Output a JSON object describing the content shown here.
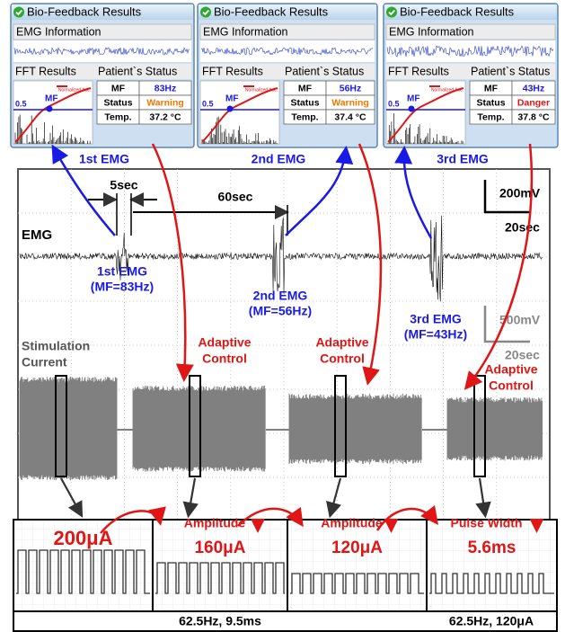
{
  "panels": [
    {
      "title": "Bio-Feedback Results",
      "emg_header": "EMG Information",
      "fft_header": "FFT Results",
      "status_header": "Patient`s Status",
      "fft_legend": "Normalized Acc.",
      "fft_level": "0.5",
      "fft_marker": "MF",
      "rows": [
        [
          "MF",
          "83Hz"
        ],
        [
          "Status",
          "Warning"
        ],
        [
          "Temp.",
          "37.2 °C"
        ]
      ],
      "caption": "1st EMG"
    },
    {
      "title": "Bio-Feedback Results",
      "emg_header": "EMG Information",
      "fft_header": "FFT Results",
      "status_header": "Patient`s Status",
      "fft_legend": "Normalized Acc.",
      "fft_level": "0.5",
      "fft_marker": "MF",
      "rows": [
        [
          "MF",
          "56Hz"
        ],
        [
          "Status",
          "Warning"
        ],
        [
          "Temp.",
          "37.4 °C"
        ]
      ],
      "caption": "2nd EMG"
    },
    {
      "title": "Bio-Feedback Results",
      "emg_header": "EMG Information",
      "fft_header": "FFT Results",
      "status_header": "Patient`s Status",
      "fft_legend": "Normalized Acc.",
      "fft_level": "0.5",
      "fft_marker": "MF",
      "rows": [
        [
          "MF",
          "43Hz"
        ],
        [
          "Status",
          "Danger"
        ],
        [
          "Temp.",
          "37.8 °C"
        ]
      ],
      "caption": "3rd EMG"
    }
  ],
  "scope": {
    "scale_top": {
      "voltage": "200mV",
      "time": "20sec"
    },
    "intervals": [
      "5sec",
      "60sec"
    ],
    "emg_label": "EMG",
    "bursts": [
      [
        "1st EMG",
        "(MF=83Hz)"
      ],
      [
        "2nd EMG",
        "(MF=56Hz)"
      ],
      [
        "3rd EMG",
        "(MF=43Hz)"
      ]
    ],
    "scale_bottom": {
      "voltage": "500mV",
      "time": "20sec"
    },
    "stim_label": [
      "Stimulation",
      "Current"
    ],
    "adaptive": [
      [
        "Adaptive",
        "Control"
      ],
      [
        "Adaptive",
        "Control"
      ],
      [
        "Adaptive",
        "Control"
      ]
    ]
  },
  "waveforms": {
    "cells": [
      {
        "value": "200μA"
      },
      {
        "change": "Amplitude",
        "value": "160μA"
      },
      {
        "change": "Amplitude",
        "value": "120μA"
      },
      {
        "change": "Pulse Width",
        "value": "5.6ms"
      }
    ],
    "footer": [
      "62.5Hz, 9.5ms",
      "62.5Hz, 120μA"
    ]
  }
}
